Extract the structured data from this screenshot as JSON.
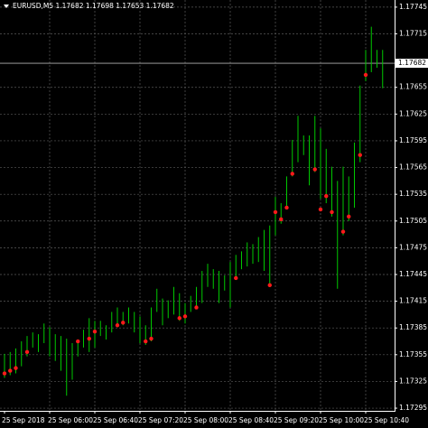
{
  "chart_data": {
    "type": "ohlc",
    "title": "EURUSD,M5  1.17682 1.17698 1.17653 1.17682",
    "current_price": 1.17682,
    "categories": [
      "25 Sep 2018",
      null,
      null,
      null,
      null,
      null,
      null,
      null,
      "25 Sep 06:00",
      null,
      null,
      null,
      null,
      null,
      null,
      null,
      "25 Sep 06:40",
      null,
      null,
      null,
      null,
      null,
      null,
      null,
      "25 Sep 07:20",
      null,
      null,
      null,
      null,
      null,
      null,
      null,
      "25 Sep 08:00",
      null,
      null,
      null,
      null,
      null,
      null,
      null,
      "25 Sep 08:40",
      null,
      null,
      null,
      null,
      null,
      null,
      null,
      "25 Sep 09:20",
      null,
      null,
      null,
      null,
      null,
      null,
      null,
      "25 Sep 10:00",
      null,
      null,
      null,
      null,
      null,
      null,
      null,
      "25 Sep 10:40",
      null,
      null,
      null
    ],
    "high": [
      1.17356,
      1.17358,
      1.17362,
      1.1737,
      1.17376,
      1.1738,
      1.17378,
      1.1739,
      1.17386,
      1.17378,
      1.17376,
      1.17373,
      1.17368,
      1.1737,
      1.17383,
      1.17396,
      1.17393,
      1.17393,
      1.17388,
      1.17403,
      1.17408,
      1.17403,
      1.17408,
      1.17403,
      1.17398,
      1.17388,
      1.17408,
      1.17429,
      1.17418,
      1.17416,
      1.17431,
      1.17424,
      1.17413,
      1.17421,
      1.17431,
      1.17449,
      1.17457,
      1.17451,
      1.17449,
      1.17444,
      1.17459,
      1.17467,
      1.17471,
      1.17481,
      1.17479,
      1.17487,
      1.17495,
      1.175,
      1.17532,
      1.17525,
      1.17555,
      1.17596,
      1.17623,
      1.17601,
      1.17601,
      1.17623,
      1.17609,
      1.17586,
      1.17566,
      1.1755,
      1.17566,
      1.17555,
      1.17593,
      1.17657,
      1.17697,
      1.17723,
      1.17697,
      1.17697
    ],
    "low": [
      1.17329,
      1.17332,
      1.17334,
      1.17342,
      1.17353,
      1.17363,
      1.17358,
      1.17368,
      1.17353,
      1.17348,
      1.17337,
      1.17309,
      1.17327,
      1.17353,
      1.17363,
      1.17358,
      1.17363,
      1.17376,
      1.17372,
      1.1738,
      1.17386,
      1.17388,
      1.1739,
      1.1738,
      1.17368,
      1.17366,
      1.1737,
      1.17403,
      1.17388,
      1.17396,
      1.174,
      1.17393,
      1.1739,
      1.17403,
      1.17408,
      1.17413,
      1.17431,
      1.17429,
      1.17413,
      1.17427,
      1.17408,
      1.17439,
      1.17451,
      1.17454,
      1.17457,
      1.17459,
      1.17449,
      1.17431,
      1.17489,
      1.17502,
      1.17518,
      1.17555,
      1.17571,
      1.17579,
      1.17545,
      1.1756,
      1.1753,
      1.17525,
      1.1751,
      1.17429,
      1.17489,
      1.17505,
      1.1752,
      1.17571,
      1.17662,
      1.17672,
      1.17677,
      1.17654
    ],
    "dots": [
      1.17334,
      1.17337,
      1.1734,
      null,
      1.17358,
      null,
      null,
      null,
      null,
      null,
      null,
      null,
      null,
      1.1737,
      null,
      1.17373,
      1.17381,
      null,
      null,
      null,
      1.17388,
      1.17391,
      null,
      null,
      null,
      1.1737,
      1.17373,
      null,
      null,
      null,
      null,
      1.17396,
      1.17398,
      null,
      1.17408,
      null,
      null,
      null,
      null,
      null,
      null,
      1.17441,
      null,
      null,
      null,
      null,
      null,
      1.17433,
      1.17515,
      1.17507,
      1.1752,
      1.17558,
      null,
      null,
      null,
      1.17563,
      1.17518,
      1.17533,
      1.17515,
      null,
      1.17493,
      1.1751,
      null,
      1.17579,
      1.17669,
      null,
      null,
      null
    ],
    "bar_color": "#00c800",
    "dot_color": "#ff1a1a",
    "ylim": [
      1.17292,
      1.17753
    ],
    "yticks": [
      1.17295,
      1.17325,
      1.17355,
      1.17385,
      1.17415,
      1.17445,
      1.17475,
      1.17505,
      1.17535,
      1.17565,
      1.17595,
      1.17625,
      1.17655,
      1.17715,
      1.17745
    ],
    "grid": true
  }
}
